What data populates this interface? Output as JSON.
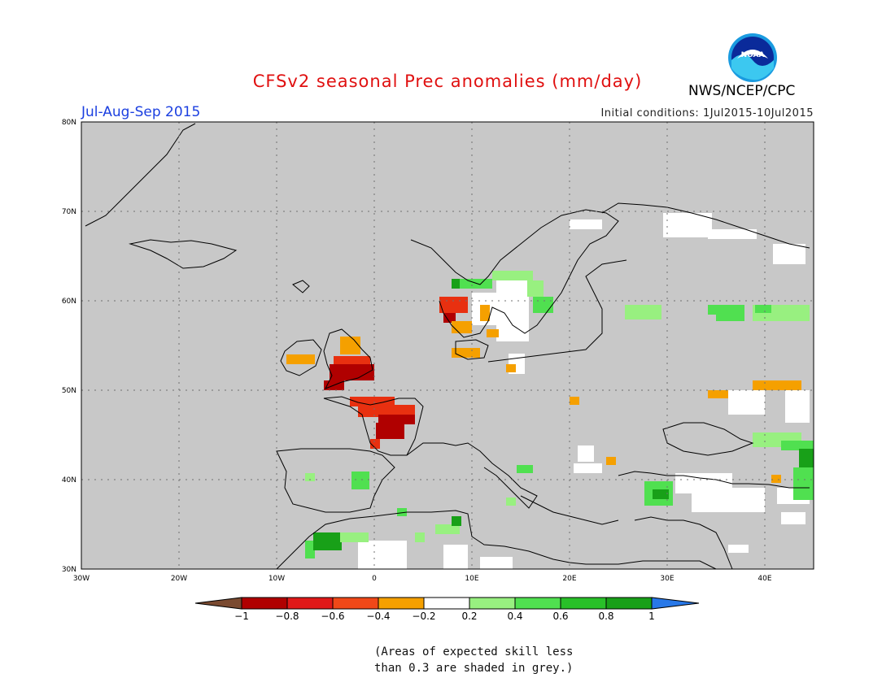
{
  "header": {
    "title": "CFSv2 seasonal Prec anomalies (mm/day)",
    "period": "Jul-Aug-Sep 2015",
    "initial_conditions": "Initial conditions: 1Jul2015-10Jul2015",
    "agency": "NWS/NCEP/CPC",
    "logo_text": "NOAA"
  },
  "map": {
    "lat_ticks": [
      "80N",
      "70N",
      "60N",
      "50N",
      "40N",
      "30N"
    ],
    "lon_ticks": [
      "30W",
      "20W",
      "10W",
      "0",
      "10E",
      "20E",
      "30E",
      "40E"
    ],
    "colors": {
      "ocean_land_grey": "#c8c8c8",
      "no_signal": "#ffffff",
      "dry_strong": "#b00000",
      "dry_mid": "#e83010",
      "dry_weak": "#f5a000",
      "wet_weak": "#98f080",
      "wet_mid": "#50e050",
      "wet_strong": "#18a018"
    },
    "anomaly_regions": [
      {
        "region": "Ireland",
        "category": "dry_weak"
      },
      {
        "region": "Wales / SW England",
        "category": "dry_strong"
      },
      {
        "region": "Western France",
        "category": "dry_mid"
      },
      {
        "region": "Central France",
        "category": "dry_strong"
      },
      {
        "region": "Southern Norway",
        "category": "dry_mid"
      },
      {
        "region": "Denmark",
        "category": "dry_weak"
      },
      {
        "region": "Central Norway / Sweden",
        "category": "wet_weak"
      },
      {
        "region": "Western Russia",
        "category": "wet_weak"
      },
      {
        "region": "Caucasus",
        "category": "wet_strong"
      },
      {
        "region": "Turkey (south-west)",
        "category": "wet_mid"
      },
      {
        "region": "Morocco",
        "category": "wet_strong"
      },
      {
        "region": "Eastern Ukraine",
        "category": "dry_weak"
      }
    ]
  },
  "colorbar": {
    "labels": [
      "-1",
      "-0.8",
      "-0.6",
      "-0.4",
      "-0.2",
      "0.2",
      "0.4",
      "0.6",
      "0.8",
      "1"
    ],
    "colors": [
      "#7a4a30",
      "#b00000",
      "#e01818",
      "#f04818",
      "#f5a000",
      "#ffffff",
      "#98f080",
      "#50e050",
      "#28c028",
      "#18a018",
      "#2878e8"
    ]
  },
  "note": {
    "line1": "(Areas of expected skill less",
    "line2": "than 0.3 are shaded in grey.)"
  }
}
